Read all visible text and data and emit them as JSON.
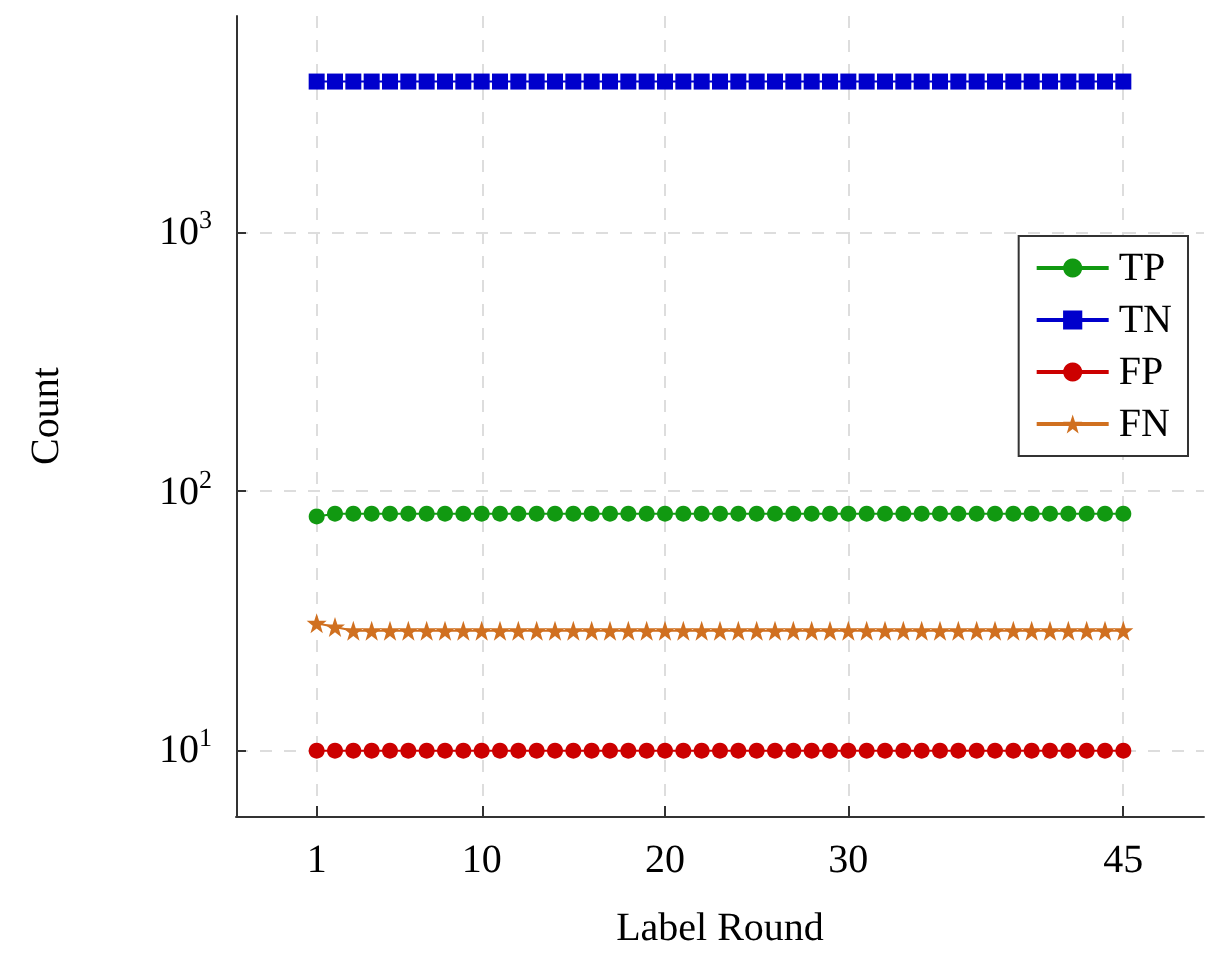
{
  "chart_data": {
    "type": "line",
    "xlabel": "Label Round",
    "ylabel": "Count",
    "x": [
      1,
      2,
      3,
      4,
      5,
      6,
      7,
      8,
      9,
      10,
      11,
      12,
      13,
      14,
      15,
      16,
      17,
      18,
      19,
      20,
      21,
      22,
      23,
      24,
      25,
      26,
      27,
      28,
      29,
      30,
      31,
      32,
      33,
      34,
      35,
      36,
      37,
      38,
      39,
      40,
      41,
      42,
      43,
      44,
      45
    ],
    "series": [
      {
        "name": "TP",
        "color": "#119911",
        "marker": "circle",
        "values": [
          80,
          82,
          82,
          82,
          82,
          82,
          82,
          82,
          82,
          82,
          82,
          82,
          82,
          82,
          82,
          82,
          82,
          82,
          82,
          82,
          82,
          82,
          82,
          82,
          82,
          82,
          82,
          82,
          82,
          82,
          82,
          82,
          82,
          82,
          82,
          82,
          82,
          82,
          82,
          82,
          82,
          82,
          82,
          82,
          82
        ]
      },
      {
        "name": "TN",
        "color": "#0000cc",
        "marker": "square",
        "values": [
          3800,
          3800,
          3800,
          3800,
          3800,
          3800,
          3800,
          3800,
          3800,
          3800,
          3800,
          3800,
          3800,
          3800,
          3800,
          3800,
          3800,
          3800,
          3800,
          3800,
          3800,
          3800,
          3800,
          3800,
          3800,
          3800,
          3800,
          3800,
          3800,
          3800,
          3800,
          3800,
          3800,
          3800,
          3800,
          3800,
          3800,
          3800,
          3800,
          3800,
          3800,
          3800,
          3800,
          3800,
          3800
        ]
      },
      {
        "name": "FP",
        "color": "#cc0000",
        "marker": "circle",
        "values": [
          10,
          10,
          10,
          10,
          10,
          10,
          10,
          10,
          10,
          10,
          10,
          10,
          10,
          10,
          10,
          10,
          10,
          10,
          10,
          10,
          10,
          10,
          10,
          10,
          10,
          10,
          10,
          10,
          10,
          10,
          10,
          10,
          10,
          10,
          10,
          10,
          10,
          10,
          10,
          10,
          10,
          10,
          10,
          10,
          10
        ]
      },
      {
        "name": "FN",
        "color": "#d07020",
        "marker": "star",
        "values": [
          31,
          30,
          29,
          29,
          29,
          29,
          29,
          29,
          29,
          29,
          29,
          29,
          29,
          29,
          29,
          29,
          29,
          29,
          29,
          29,
          29,
          29,
          29,
          29,
          29,
          29,
          29,
          29,
          29,
          29,
          29,
          29,
          29,
          29,
          29,
          29,
          29,
          29,
          29,
          29,
          29,
          29,
          29,
          29,
          29
        ]
      }
    ],
    "xlim": [
      -3.4,
      49.4
    ],
    "xticks": [
      1,
      10,
      20,
      30,
      45
    ],
    "ylim": [
      5.6,
      6800
    ],
    "yticks": [
      {
        "value": 10,
        "label": "10$^{1}$"
      },
      {
        "value": 100,
        "label": "10$^{2}$"
      },
      {
        "value": 1000,
        "label": "10$^{3}$"
      }
    ],
    "log": "y",
    "grid": true,
    "legend": "right",
    "line_style": "solid"
  }
}
